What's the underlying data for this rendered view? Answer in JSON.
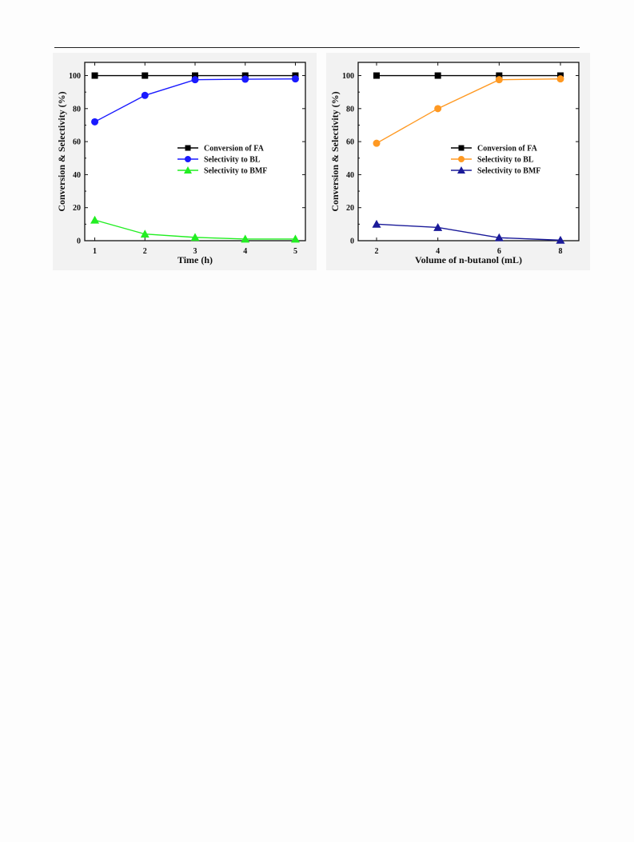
{
  "chart_data": [
    {
      "type": "line",
      "x": [
        1,
        2,
        3,
        4,
        5
      ],
      "xlabel": "Time (h)",
      "ylabel": "Conversion & Selectivity (%)",
      "xlim": [
        0.8,
        5.2
      ],
      "ylim": [
        0,
        108
      ],
      "xticks": [
        1,
        2,
        3,
        4,
        5
      ],
      "yticks": [
        0,
        20,
        40,
        60,
        80,
        100
      ],
      "legend_position": "center-right",
      "series": [
        {
          "name": "Conversion of FA",
          "marker": "square",
          "color": "#000000",
          "values": [
            100,
            100,
            100,
            100,
            100
          ]
        },
        {
          "name": "Selectivity to BL",
          "marker": "circle",
          "color": "#1a1aff",
          "values": [
            72,
            88,
            97.5,
            97.8,
            98
          ]
        },
        {
          "name": "Selectivity to BMF",
          "marker": "triangle",
          "color": "#22ee22",
          "values": [
            12.5,
            4,
            2,
            1,
            1
          ]
        }
      ]
    },
    {
      "type": "line",
      "x": [
        2,
        4,
        6,
        8
      ],
      "xlabel": "Volume of n-butanol  (mL)",
      "ylabel": "Conversion & Selectivity (%)",
      "xlim": [
        1.4,
        8.6
      ],
      "ylim": [
        0,
        108
      ],
      "xticks": [
        2,
        4,
        6,
        8
      ],
      "yticks": [
        0,
        20,
        40,
        60,
        80,
        100
      ],
      "legend_position": "center-right",
      "series": [
        {
          "name": "Conversion of FA",
          "marker": "square",
          "color": "#000000",
          "values": [
            100,
            100,
            100,
            100
          ]
        },
        {
          "name": "Selectivity to BL",
          "marker": "circle",
          "color": "#ff9922",
          "values": [
            59,
            80,
            97.5,
            98
          ]
        },
        {
          "name": "Selectivity to BMF",
          "marker": "triangle",
          "color": "#1a1a99",
          "values": [
            10,
            8,
            1.8,
            0.3
          ]
        }
      ]
    }
  ]
}
